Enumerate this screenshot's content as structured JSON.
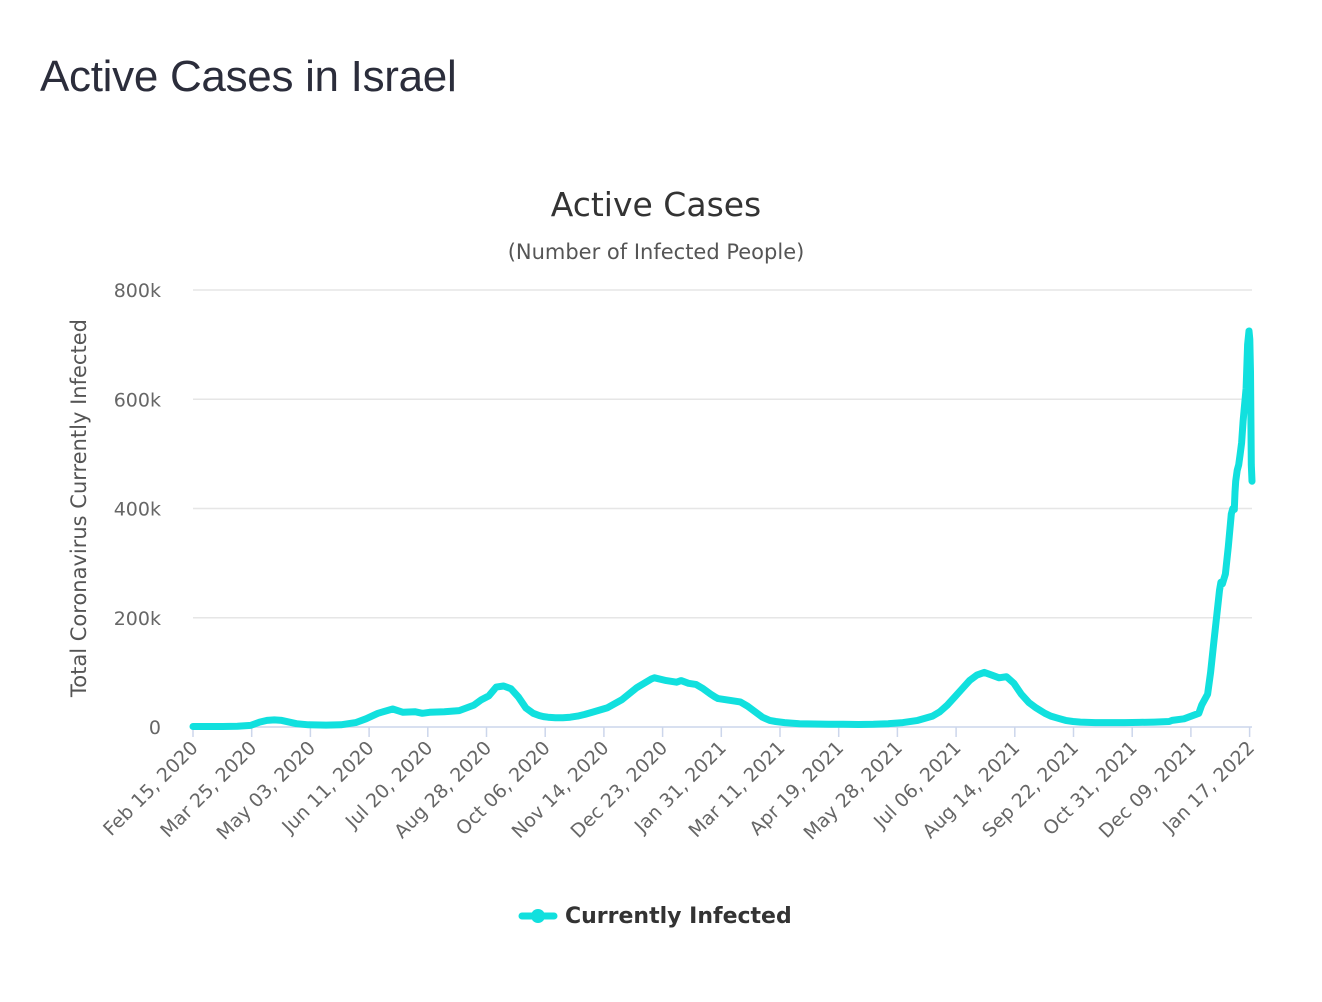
{
  "page": {
    "heading": "Active Cases in Israel"
  },
  "chart_data": {
    "type": "line",
    "title": "Active Cases",
    "subtitle": "(Number of Infected People)",
    "xlabel": "",
    "ylabel": "Total Coronavirus Currently Infected",
    "ylim": [
      0,
      800000
    ],
    "y_ticks": [
      0,
      200000,
      400000,
      600000,
      800000
    ],
    "y_tick_labels": [
      "0",
      "200k",
      "400k",
      "600k",
      "800k"
    ],
    "x_tick_labels": [
      "Feb 15, 2020",
      "Mar 25, 2020",
      "May 03, 2020",
      "Jun 11, 2020",
      "Jul 20, 2020",
      "Aug 28, 2020",
      "Oct 06, 2020",
      "Nov 14, 2020",
      "Dec 23, 2020",
      "Jan 31, 2021",
      "Mar 11, 2021",
      "Apr 19, 2021",
      "May 28, 2021",
      "Jul 06, 2021",
      "Aug 14, 2021",
      "Sep 22, 2021",
      "Oct 31, 2021",
      "Dec 09, 2021",
      "Jan 17, 2022"
    ],
    "grid": true,
    "legend_position": "bottom-center",
    "series": [
      {
        "name": "Currently Infected",
        "color": "#11e0de",
        "x": [
          0,
          10,
          20,
          30,
          39,
          45,
          50,
          55,
          60,
          70,
          78,
          90,
          100,
          110,
          117,
          125,
          135,
          142,
          150,
          155,
          160,
          170,
          180,
          190,
          195,
          200,
          205,
          210,
          215,
          220,
          225,
          230,
          234,
          237,
          240,
          245,
          250,
          255,
          260,
          265,
          270,
          280,
          290,
          300,
          310,
          312,
          320,
          327,
          330,
          335,
          340,
          345,
          350,
          353,
          355,
          360,
          365,
          370,
          375,
          380,
          385,
          390,
          394,
          400,
          410,
          420,
          430,
          440,
          450,
          460,
          470,
          480,
          490,
          500,
          505,
          510,
          515,
          520,
          525,
          530,
          535,
          540,
          545,
          550,
          555,
          560,
          565,
          570,
          573,
          576,
          580,
          585,
          590,
          595,
          600,
          605,
          610,
          615,
          620,
          625,
          630,
          640,
          650,
          660,
          662,
          670,
          680,
          682,
          686,
          688,
          690,
          692,
          694,
          695,
          696,
          698,
          700,
          701,
          702,
          703,
          704,
          704.5,
          705,
          706,
          707,
          708,
          709,
          710,
          711,
          712,
          713,
          714,
          714.5,
          715,
          715.5,
          716
        ],
        "values": [
          1000,
          1000,
          1000,
          1500,
          3000,
          9000,
          12000,
          13000,
          12000,
          6000,
          4000,
          3500,
          4000,
          8000,
          15000,
          25000,
          33000,
          27000,
          28000,
          25000,
          27000,
          28000,
          30000,
          40000,
          50000,
          57000,
          73000,
          75000,
          70000,
          55000,
          35000,
          25000,
          21000,
          19000,
          18000,
          17000,
          17000,
          18000,
          20000,
          23000,
          27000,
          35000,
          50000,
          72000,
          88000,
          90000,
          85000,
          82000,
          85000,
          80000,
          78000,
          70000,
          60000,
          55000,
          52000,
          50000,
          48000,
          46000,
          38000,
          28000,
          18000,
          12000,
          10000,
          8000,
          6000,
          5500,
          5000,
          5000,
          4500,
          5000,
          6000,
          8000,
          12000,
          20000,
          28000,
          40000,
          55000,
          70000,
          85000,
          95000,
          100000,
          95000,
          90000,
          92000,
          80000,
          60000,
          45000,
          35000,
          30000,
          25000,
          20000,
          16000,
          12000,
          10000,
          9000,
          8500,
          8000,
          8000,
          8000,
          8000,
          8000,
          8500,
          9000,
          10000,
          12000,
          15000,
          25000,
          40000,
          60000,
          100000,
          150000,
          200000,
          250000,
          265000,
          262000,
          280000,
          330000,
          360000,
          390000,
          400000,
          398000,
          430000,
          450000,
          470000,
          480000,
          500000,
          520000,
          560000,
          590000,
          620000,
          700000,
          725000,
          710000,
          650000,
          480000,
          450000
        ]
      }
    ]
  }
}
